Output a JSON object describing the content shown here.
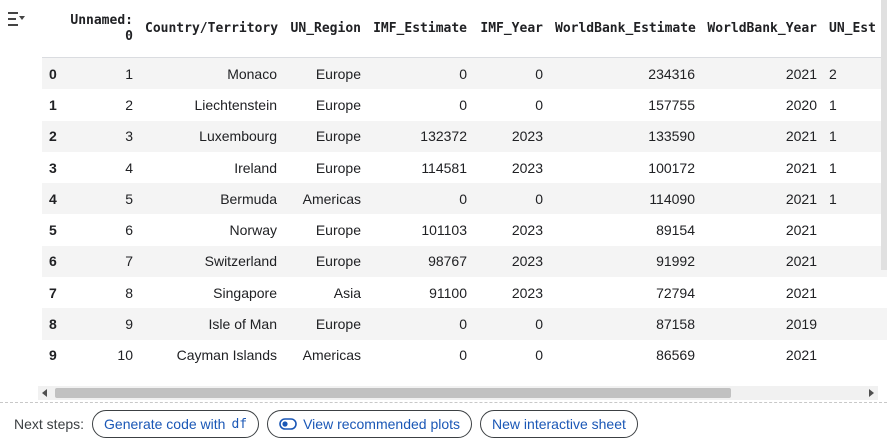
{
  "table": {
    "columns": [
      "",
      "Unnamed:\n0",
      "Country/Territory",
      "UN_Region",
      "IMF_Estimate",
      "IMF_Year",
      "WorldBank_Estimate",
      "WorldBank_Year",
      "UN_Est"
    ],
    "rows": [
      [
        "0",
        "1",
        "Monaco",
        "Europe",
        "0",
        "0",
        "234316",
        "2021",
        "2"
      ],
      [
        "1",
        "2",
        "Liechtenstein",
        "Europe",
        "0",
        "0",
        "157755",
        "2020",
        "1"
      ],
      [
        "2",
        "3",
        "Luxembourg",
        "Europe",
        "132372",
        "2023",
        "133590",
        "2021",
        "1"
      ],
      [
        "3",
        "4",
        "Ireland",
        "Europe",
        "114581",
        "2023",
        "100172",
        "2021",
        "1"
      ],
      [
        "4",
        "5",
        "Bermuda",
        "Americas",
        "0",
        "0",
        "114090",
        "2021",
        "1"
      ],
      [
        "5",
        "6",
        "Norway",
        "Europe",
        "101103",
        "2023",
        "89154",
        "2021",
        ""
      ],
      [
        "6",
        "7",
        "Switzerland",
        "Europe",
        "98767",
        "2023",
        "91992",
        "2021",
        ""
      ],
      [
        "7",
        "8",
        "Singapore",
        "Asia",
        "91100",
        "2023",
        "72794",
        "2021",
        ""
      ],
      [
        "8",
        "9",
        "Isle of Man",
        "Europe",
        "0",
        "0",
        "87158",
        "2019",
        ""
      ],
      [
        "9",
        "10",
        "Cayman Islands",
        "Americas",
        "0",
        "0",
        "86569",
        "2021",
        ""
      ]
    ]
  },
  "scrollbar": {
    "horizontal_position": 0.0,
    "visible_fraction": 0.82
  },
  "footer": {
    "label": "Next steps:",
    "generate_code": "Generate code with",
    "generate_code_var": "df",
    "view_plots": "View recommended plots",
    "new_sheet": "New interactive sheet"
  },
  "icons": {
    "left_toolbar": "filter-list-icon",
    "view_plots": "toggle-icon"
  }
}
